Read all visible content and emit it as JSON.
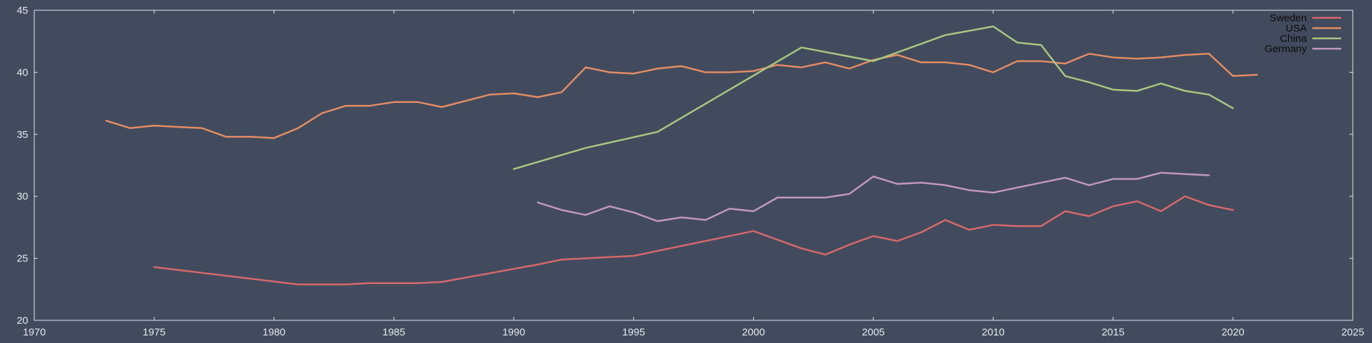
{
  "chart_data": {
    "type": "line",
    "title": "",
    "xlabel": "",
    "ylabel": "",
    "xlim": [
      1970,
      2025
    ],
    "ylim": [
      20,
      45
    ],
    "x_ticks": [
      1970,
      1975,
      1980,
      1985,
      1990,
      1995,
      2000,
      2005,
      2010,
      2015,
      2020,
      2025
    ],
    "y_ticks": [
      20,
      25,
      30,
      35,
      40,
      45
    ],
    "grid": false,
    "legend_position": "top-right",
    "background_color": "#424b5e",
    "axis_color": "#e4e7ec",
    "series": [
      {
        "name": "Sweden",
        "color": "#d9686b",
        "points": [
          [
            1975,
            24.3
          ],
          [
            1981,
            22.9
          ],
          [
            1982,
            22.9
          ],
          [
            1983,
            22.9
          ],
          [
            1984,
            23.0
          ],
          [
            1985,
            23.0
          ],
          [
            1986,
            23.0
          ],
          [
            1987,
            23.1
          ],
          [
            1989,
            23.8
          ],
          [
            1991,
            24.5
          ],
          [
            1992,
            24.9
          ],
          [
            1993,
            25.0
          ],
          [
            1994,
            25.1
          ],
          [
            1995,
            25.2
          ],
          [
            2000,
            27.2
          ],
          [
            2002,
            25.8
          ],
          [
            2003,
            25.3
          ],
          [
            2004,
            26.1
          ],
          [
            2005,
            26.8
          ],
          [
            2006,
            26.4
          ],
          [
            2007,
            27.1
          ],
          [
            2008,
            28.1
          ],
          [
            2009,
            27.3
          ],
          [
            2010,
            27.7
          ],
          [
            2011,
            27.6
          ],
          [
            2012,
            27.6
          ],
          [
            2013,
            28.8
          ],
          [
            2014,
            28.4
          ],
          [
            2015,
            29.2
          ],
          [
            2016,
            29.6
          ],
          [
            2017,
            28.8
          ],
          [
            2018,
            30.0
          ],
          [
            2019,
            29.3
          ],
          [
            2020,
            28.9
          ]
        ]
      },
      {
        "name": "USA",
        "color": "#e58d63",
        "points": [
          [
            1973,
            36.1
          ],
          [
            1974,
            35.5
          ],
          [
            1975,
            35.7
          ],
          [
            1976,
            35.6
          ],
          [
            1977,
            35.5
          ],
          [
            1978,
            34.8
          ],
          [
            1979,
            34.8
          ],
          [
            1980,
            34.7
          ],
          [
            1981,
            35.5
          ],
          [
            1982,
            36.7
          ],
          [
            1983,
            37.3
          ],
          [
            1984,
            37.3
          ],
          [
            1985,
            37.6
          ],
          [
            1986,
            37.6
          ],
          [
            1987,
            37.2
          ],
          [
            1988,
            37.7
          ],
          [
            1989,
            38.2
          ],
          [
            1990,
            38.3
          ],
          [
            1991,
            38.0
          ],
          [
            1992,
            38.4
          ],
          [
            1993,
            40.4
          ],
          [
            1994,
            40.0
          ],
          [
            1995,
            39.9
          ],
          [
            1996,
            40.3
          ],
          [
            1997,
            40.5
          ],
          [
            1998,
            40.0
          ],
          [
            1999,
            40.0
          ],
          [
            2000,
            40.1
          ],
          [
            2001,
            40.6
          ],
          [
            2002,
            40.4
          ],
          [
            2003,
            40.8
          ],
          [
            2004,
            40.3
          ],
          [
            2005,
            41.0
          ],
          [
            2006,
            41.4
          ],
          [
            2007,
            40.8
          ],
          [
            2008,
            40.8
          ],
          [
            2009,
            40.6
          ],
          [
            2010,
            40.0
          ],
          [
            2011,
            40.9
          ],
          [
            2012,
            40.9
          ],
          [
            2013,
            40.7
          ],
          [
            2014,
            41.5
          ],
          [
            2015,
            41.2
          ],
          [
            2016,
            41.1
          ],
          [
            2017,
            41.2
          ],
          [
            2018,
            41.4
          ],
          [
            2019,
            41.5
          ],
          [
            2020,
            39.7
          ],
          [
            2021,
            39.8
          ]
        ]
      },
      {
        "name": "China",
        "color": "#a9c97f",
        "points": [
          [
            1990,
            32.2
          ],
          [
            1993,
            33.9
          ],
          [
            1996,
            35.2
          ],
          [
            1999,
            38.6
          ],
          [
            2002,
            42.0
          ],
          [
            2005,
            40.9
          ],
          [
            2008,
            43.0
          ],
          [
            2010,
            43.7
          ],
          [
            2011,
            42.4
          ],
          [
            2012,
            42.2
          ],
          [
            2013,
            39.7
          ],
          [
            2014,
            39.2
          ],
          [
            2015,
            38.6
          ],
          [
            2016,
            38.5
          ],
          [
            2017,
            39.1
          ],
          [
            2018,
            38.5
          ],
          [
            2019,
            38.2
          ],
          [
            2020,
            37.1
          ]
        ]
      },
      {
        "name": "Germany",
        "color": "#c39abc",
        "points": [
          [
            1991,
            29.5
          ],
          [
            1992,
            28.9
          ],
          [
            1993,
            28.5
          ],
          [
            1994,
            29.2
          ],
          [
            1995,
            28.7
          ],
          [
            1996,
            28.0
          ],
          [
            1997,
            28.3
          ],
          [
            1998,
            28.1
          ],
          [
            1999,
            29.0
          ],
          [
            2000,
            28.8
          ],
          [
            2001,
            29.9
          ],
          [
            2002,
            29.9
          ],
          [
            2003,
            29.9
          ],
          [
            2004,
            30.2
          ],
          [
            2005,
            31.6
          ],
          [
            2006,
            31.0
          ],
          [
            2007,
            31.1
          ],
          [
            2008,
            30.9
          ],
          [
            2009,
            30.5
          ],
          [
            2010,
            30.3
          ],
          [
            2011,
            30.7
          ],
          [
            2012,
            31.1
          ],
          [
            2013,
            31.5
          ],
          [
            2014,
            30.9
          ],
          [
            2015,
            31.4
          ],
          [
            2016,
            31.4
          ],
          [
            2017,
            31.9
          ],
          [
            2018,
            31.8
          ],
          [
            2019,
            31.7
          ]
        ]
      }
    ]
  }
}
